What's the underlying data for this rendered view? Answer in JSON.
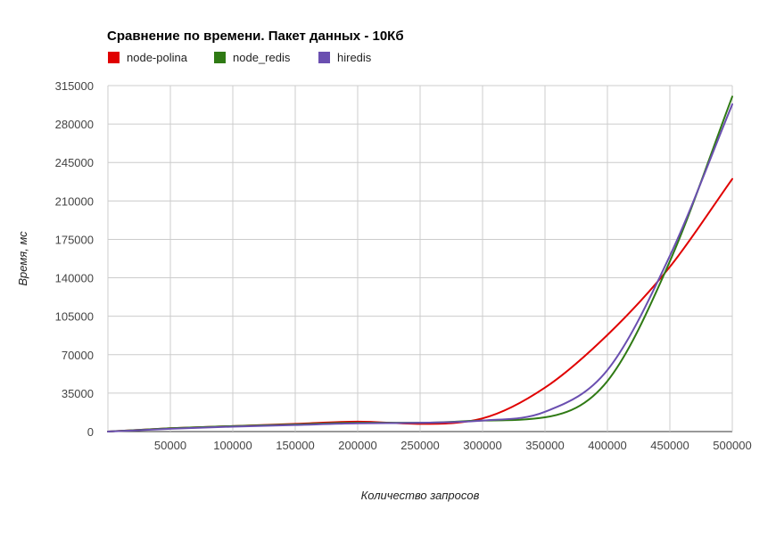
{
  "chart_data": {
    "type": "line",
    "title": "Сравнение по времени. Пакет данных - 10Кб",
    "xlabel": "Количество запросов",
    "ylabel": "Время, мс",
    "xlim": [
      0,
      500000
    ],
    "ylim": [
      0,
      315000
    ],
    "x_ticks": [
      50000,
      100000,
      150000,
      200000,
      250000,
      300000,
      350000,
      400000,
      450000,
      500000
    ],
    "y_ticks": [
      0,
      35000,
      70000,
      105000,
      140000,
      175000,
      210000,
      245000,
      280000,
      315000
    ],
    "x_tick_labels": [
      "50000",
      "100000",
      "150000",
      "200000",
      "250000",
      "300000",
      "350000",
      "400000",
      "450000",
      "500000"
    ],
    "y_tick_labels": [
      "0",
      "35000",
      "70000",
      "105000",
      "140000",
      "175000",
      "210000",
      "245000",
      "280000",
      "315000"
    ],
    "grid": true,
    "legend_position": "top",
    "x": [
      0,
      50000,
      100000,
      150000,
      200000,
      250000,
      300000,
      350000,
      400000,
      450000,
      500000
    ],
    "series": [
      {
        "name": "node-polina",
        "color": "#e00000",
        "values": [
          0,
          3000,
          5000,
          7000,
          9000,
          7000,
          12000,
          40000,
          88000,
          150000,
          230000
        ]
      },
      {
        "name": "node_redis",
        "color": "#2f7a14",
        "values": [
          0,
          3000,
          5000,
          6500,
          8000,
          8000,
          10000,
          13000,
          46000,
          155000,
          305000
        ]
      },
      {
        "name": "hiredis",
        "color": "#6a4fb0",
        "values": [
          0,
          2500,
          4500,
          6000,
          7500,
          8000,
          10000,
          18000,
          56000,
          160000,
          298000
        ]
      }
    ]
  }
}
